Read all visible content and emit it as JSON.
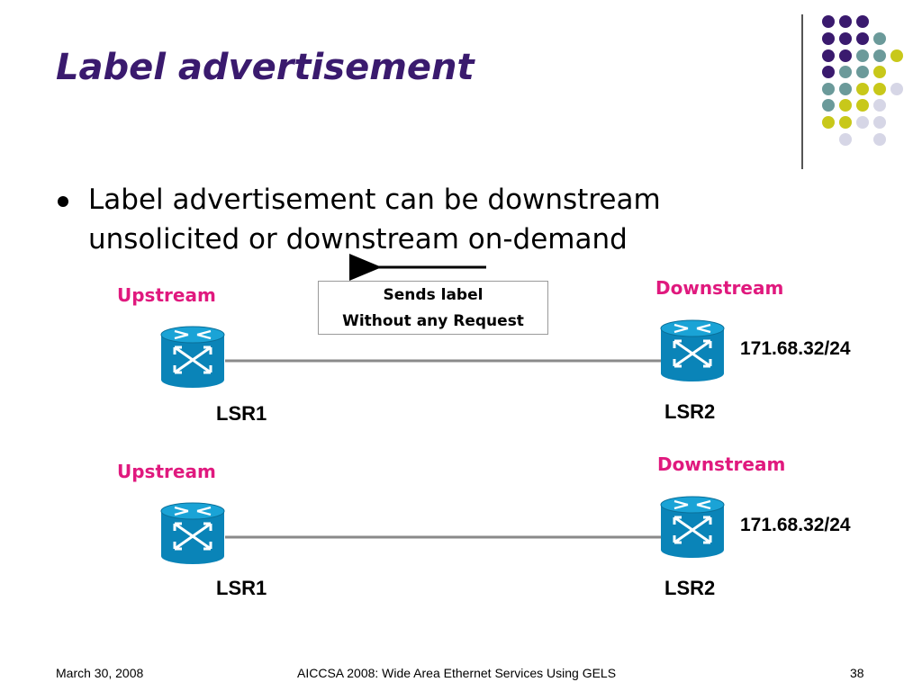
{
  "slide": {
    "title": "Label advertisement",
    "bullet": "Label advertisement can be downstream unsolicited or downstream on-demand"
  },
  "diagram": {
    "message": {
      "line1": "Sends label",
      "line2": "Without any Request"
    },
    "rows": [
      {
        "upstream_label": "Upstream",
        "downstream_label": "Downstream",
        "lsr1_label": "LSR1",
        "lsr2_label": "LSR2",
        "prefix": "171.68.32/24"
      },
      {
        "upstream_label": "Upstream",
        "downstream_label": "Downstream",
        "lsr1_label": "LSR1",
        "lsr2_label": "LSR2",
        "prefix": "171.68.32/24"
      }
    ]
  },
  "colors": {
    "title": "#3a1a6e",
    "role_labels": "#e0197e",
    "router_body": "#0a84b8",
    "dot_purple": "#3a1a6e",
    "dot_teal": "#6b9a9a",
    "dot_yellow": "#c8c81a",
    "dot_lavender": "#d6d6e6"
  },
  "footer": {
    "date": "March 30, 2008",
    "center": "AICCSA 2008: Wide Area Ethernet Services Using GELS",
    "page": "38"
  }
}
